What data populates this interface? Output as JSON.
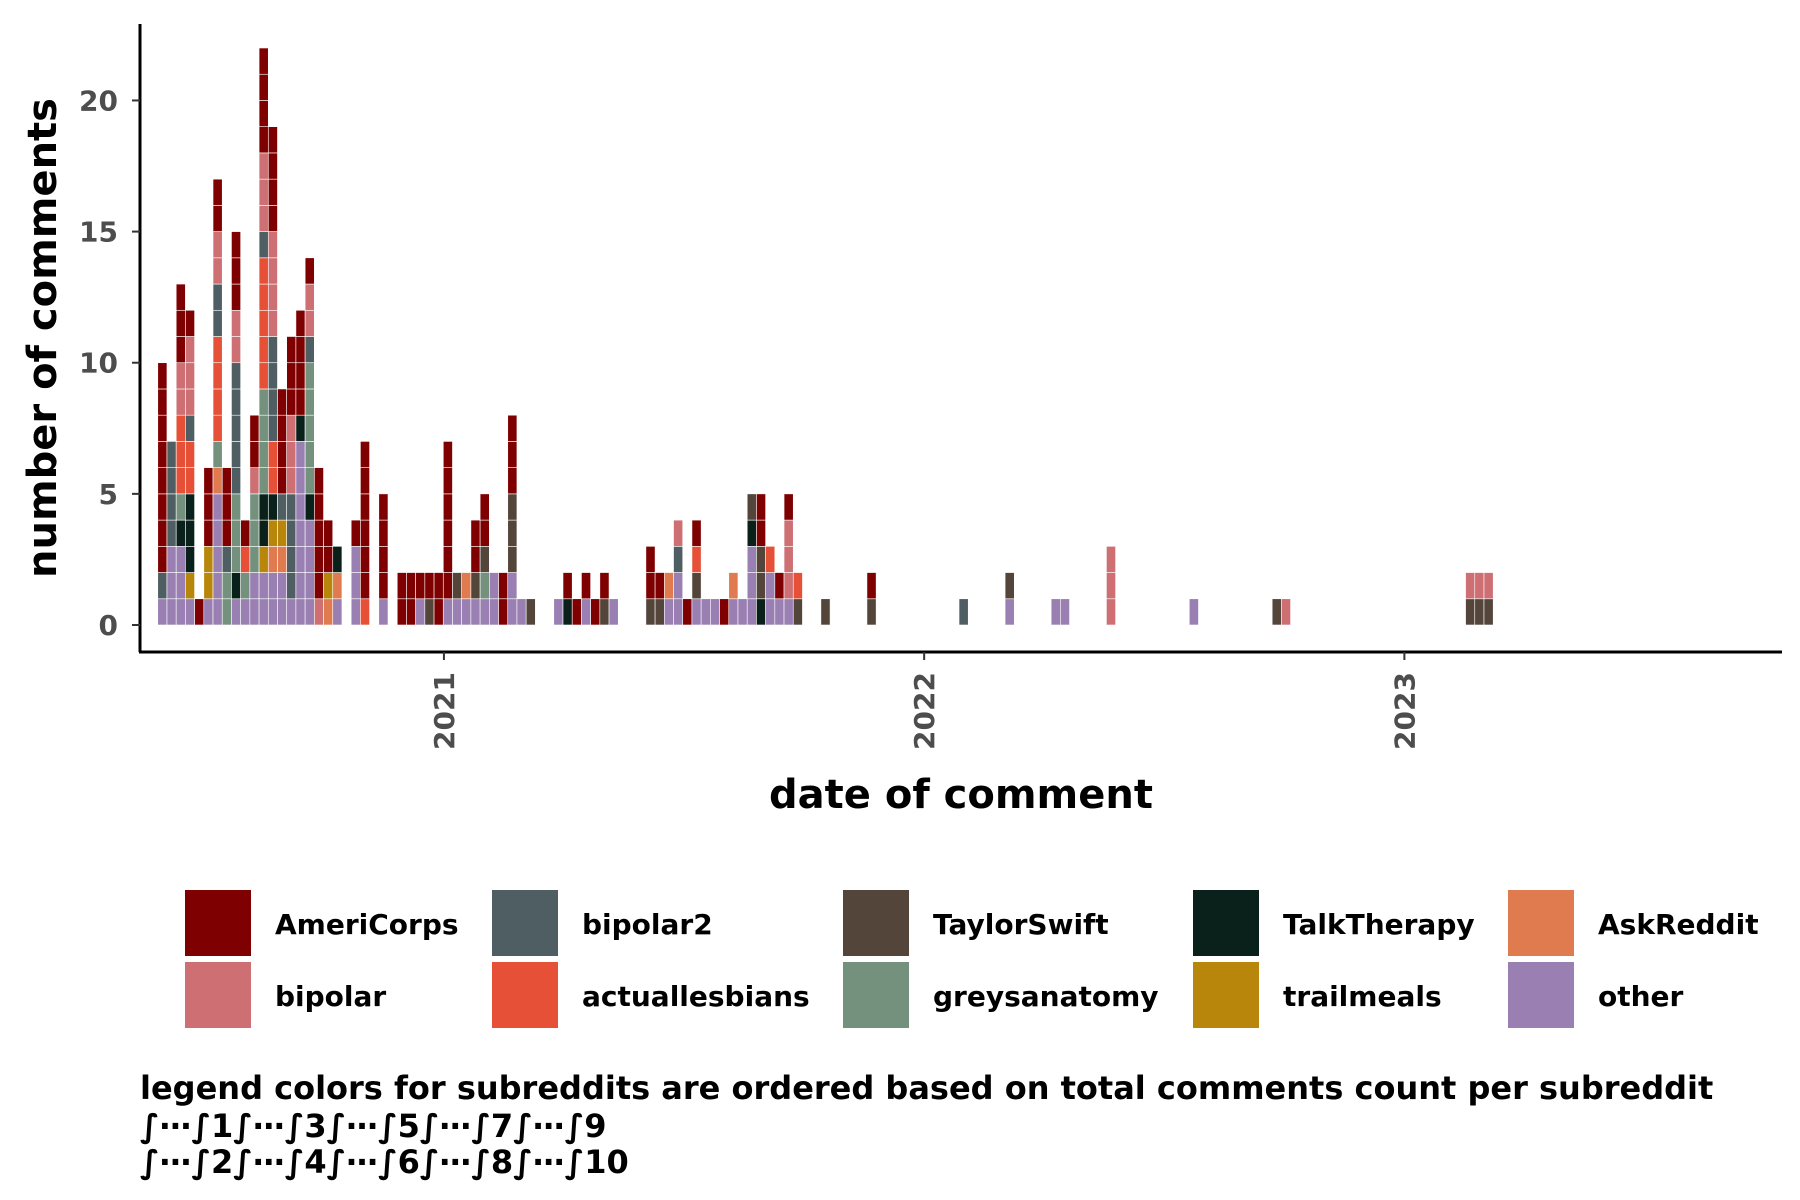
{
  "chart_data": {
    "type": "bar",
    "stacked": true,
    "binning": "weekly",
    "xlabel": "date of comment",
    "ylabel": "number of comments",
    "ylim": [
      0,
      22
    ],
    "yticks": [
      0,
      5,
      10,
      15,
      20
    ],
    "xticks": [
      "2021-01-01",
      "2022-01-01",
      "2023-01-01"
    ],
    "xtick_labels": [
      "2021",
      "2022",
      "2023"
    ],
    "xlim": [
      "2020-05-15",
      "2023-10-15"
    ],
    "grid": false,
    "legend_position": "bottom",
    "legend": [
      {
        "key": "AmeriCorps",
        "label": "AmeriCorps",
        "color": "#7f0000"
      },
      {
        "key": "bipolar",
        "label": "bipolar",
        "color": "#cd6f73"
      },
      {
        "key": "bipolar2",
        "label": "bipolar2",
        "color": "#4f5e62"
      },
      {
        "key": "actuallesbians",
        "label": "actuallesbians",
        "color": "#e55036"
      },
      {
        "key": "TaylorSwift",
        "label": "TaylorSwift",
        "color": "#53453a"
      },
      {
        "key": "greysanatomy",
        "label": "greysanatomy",
        "color": "#74917d"
      },
      {
        "key": "TalkTherapy",
        "label": "TalkTherapy",
        "color": "#0a211b"
      },
      {
        "key": "trailmeals",
        "label": "trailmeals",
        "color": "#b8860b"
      },
      {
        "key": "AskReddit",
        "label": "AskReddit",
        "color": "#e07b4f"
      },
      {
        "key": "other",
        "label": "other",
        "color": "#9a7fb3"
      }
    ],
    "stack_order": [
      "other",
      "AskReddit",
      "trailmeals",
      "TalkTherapy",
      "greysanatomy",
      "TaylorSwift",
      "actuallesbians",
      "bipolar2",
      "bipolar",
      "AmeriCorps"
    ],
    "bins": [
      {
        "date": "2020-06-01",
        "counts": {
          "other": 1,
          "bipolar2": 1,
          "AmeriCorps": 8
        }
      },
      {
        "date": "2020-06-08",
        "counts": {
          "other": 3,
          "bipolar2": 4
        }
      },
      {
        "date": "2020-06-15",
        "counts": {
          "other": 3,
          "TalkTherapy": 1,
          "greysanatomy": 1,
          "actuallesbians": 3,
          "bipolar": 2,
          "AmeriCorps": 3
        }
      },
      {
        "date": "2020-06-22",
        "counts": {
          "other": 1,
          "trailmeals": 1,
          "TalkTherapy": 3,
          "actuallesbians": 2,
          "bipolar2": 1,
          "bipolar": 3,
          "AmeriCorps": 1
        }
      },
      {
        "date": "2020-06-29",
        "counts": {
          "AmeriCorps": 1
        }
      },
      {
        "date": "2020-07-06",
        "counts": {
          "other": 1,
          "trailmeals": 2,
          "AmeriCorps": 3
        }
      },
      {
        "date": "2020-07-13",
        "counts": {
          "other": 5,
          "AskReddit": 1,
          "greysanatomy": 1,
          "actuallesbians": 4,
          "bipolar2": 2,
          "bipolar": 2,
          "AmeriCorps": 2
        }
      },
      {
        "date": "2020-07-20",
        "counts": {
          "greysanatomy": 2,
          "bipolar2": 1,
          "AmeriCorps": 3
        }
      },
      {
        "date": "2020-07-27",
        "counts": {
          "other": 1,
          "TalkTherapy": 1,
          "greysanatomy": 3,
          "bipolar2": 5,
          "bipolar": 2,
          "AmeriCorps": 3
        }
      },
      {
        "date": "2020-08-03",
        "counts": {
          "other": 1,
          "greysanatomy": 1,
          "actuallesbians": 1,
          "AmeriCorps": 1
        }
      },
      {
        "date": "2020-08-10",
        "counts": {
          "other": 2,
          "greysanatomy": 3,
          "bipolar": 1,
          "AmeriCorps": 2
        }
      },
      {
        "date": "2020-08-17",
        "counts": {
          "other": 2,
          "trailmeals": 1,
          "TalkTherapy": 2,
          "greysanatomy": 4,
          "actuallesbians": 5,
          "bipolar2": 1,
          "bipolar": 3,
          "AmeriCorps": 4
        }
      },
      {
        "date": "2020-08-24",
        "counts": {
          "other": 2,
          "AskReddit": 1,
          "trailmeals": 1,
          "TalkTherapy": 1,
          "actuallesbians": 2,
          "bipolar2": 4,
          "bipolar": 4,
          "AmeriCorps": 4
        }
      },
      {
        "date": "2020-08-31",
        "counts": {
          "other": 2,
          "trailmeals": 1,
          "AskReddit": 1,
          "bipolar2": 1,
          "AmeriCorps": 4
        }
      },
      {
        "date": "2020-09-07",
        "counts": {
          "other": 1,
          "bipolar2": 4,
          "bipolar": 3,
          "AmeriCorps": 3
        }
      },
      {
        "date": "2020-09-14",
        "counts": {
          "other": 7,
          "TalkTherapy": 1,
          "AmeriCorps": 4
        }
      },
      {
        "date": "2020-09-21",
        "counts": {
          "other": 4,
          "TalkTherapy": 1,
          "greysanatomy": 5,
          "bipolar2": 1,
          "bipolar": 2,
          "AmeriCorps": 1
        }
      },
      {
        "date": "2020-09-28",
        "counts": {
          "bipolar": 1,
          "AmeriCorps": 5
        }
      },
      {
        "date": "2020-10-05",
        "counts": {
          "AskReddit": 1,
          "trailmeals": 1,
          "AmeriCorps": 2
        }
      },
      {
        "date": "2020-10-12",
        "counts": {
          "other": 1,
          "AskReddit": 1,
          "TalkTherapy": 1
        }
      },
      {
        "date": "2020-10-26",
        "counts": {
          "other": 3,
          "AmeriCorps": 1
        }
      },
      {
        "date": "2020-11-02",
        "counts": {
          "actuallesbians": 1,
          "AmeriCorps": 6
        }
      },
      {
        "date": "2020-11-16",
        "counts": {
          "other": 1,
          "AmeriCorps": 4
        }
      },
      {
        "date": "2020-11-30",
        "counts": {
          "AmeriCorps": 2
        }
      },
      {
        "date": "2020-12-07",
        "counts": {
          "AmeriCorps": 2
        }
      },
      {
        "date": "2020-12-14",
        "counts": {
          "other": 1,
          "AmeriCorps": 1
        }
      },
      {
        "date": "2020-12-21",
        "counts": {
          "TaylorSwift": 1,
          "AmeriCorps": 1
        }
      },
      {
        "date": "2020-12-28",
        "counts": {
          "AmeriCorps": 2
        }
      },
      {
        "date": "2021-01-04",
        "counts": {
          "other": 1,
          "AmeriCorps": 6
        }
      },
      {
        "date": "2021-01-11",
        "counts": {
          "other": 1,
          "TaylorSwift": 1
        }
      },
      {
        "date": "2021-01-18",
        "counts": {
          "other": 1,
          "AskReddit": 1
        }
      },
      {
        "date": "2021-01-25",
        "counts": {
          "other": 1,
          "TaylorSwift": 1,
          "AmeriCorps": 2
        }
      },
      {
        "date": "2021-02-01",
        "counts": {
          "other": 1,
          "greysanatomy": 1,
          "TaylorSwift": 1,
          "AmeriCorps": 2
        }
      },
      {
        "date": "2021-02-08",
        "counts": {
          "other": 2
        }
      },
      {
        "date": "2021-02-15",
        "counts": {
          "AmeriCorps": 2
        }
      },
      {
        "date": "2021-02-22",
        "counts": {
          "other": 2,
          "TaylorSwift": 3,
          "AmeriCorps": 3
        }
      },
      {
        "date": "2021-03-01",
        "counts": {
          "other": 1
        }
      },
      {
        "date": "2021-03-08",
        "counts": {
          "TaylorSwift": 1
        }
      },
      {
        "date": "2021-03-29",
        "counts": {
          "other": 1
        }
      },
      {
        "date": "2021-04-05",
        "counts": {
          "TalkTherapy": 1,
          "AmeriCorps": 1
        }
      },
      {
        "date": "2021-04-12",
        "counts": {
          "AmeriCorps": 1
        }
      },
      {
        "date": "2021-04-19",
        "counts": {
          "other": 1,
          "AmeriCorps": 1
        }
      },
      {
        "date": "2021-04-26",
        "counts": {
          "AmeriCorps": 1
        }
      },
      {
        "date": "2021-05-03",
        "counts": {
          "TaylorSwift": 1,
          "AmeriCorps": 1
        }
      },
      {
        "date": "2021-05-10",
        "counts": {
          "other": 1
        }
      },
      {
        "date": "2021-06-07",
        "counts": {
          "TaylorSwift": 1,
          "AmeriCorps": 2
        }
      },
      {
        "date": "2021-06-14",
        "counts": {
          "TaylorSwift": 1,
          "AmeriCorps": 1
        }
      },
      {
        "date": "2021-06-21",
        "counts": {
          "other": 1,
          "AskReddit": 1
        }
      },
      {
        "date": "2021-06-28",
        "counts": {
          "other": 2,
          "bipolar2": 1,
          "bipolar": 1
        }
      },
      {
        "date": "2021-07-05",
        "counts": {
          "AmeriCorps": 1
        }
      },
      {
        "date": "2021-07-12",
        "counts": {
          "other": 1,
          "TaylorSwift": 1,
          "actuallesbians": 1,
          "AmeriCorps": 1
        }
      },
      {
        "date": "2021-07-19",
        "counts": {
          "other": 1
        }
      },
      {
        "date": "2021-07-26",
        "counts": {
          "other": 1
        }
      },
      {
        "date": "2021-08-02",
        "counts": {
          "AmeriCorps": 1
        }
      },
      {
        "date": "2021-08-09",
        "counts": {
          "other": 1,
          "AskReddit": 1
        }
      },
      {
        "date": "2021-08-16",
        "counts": {
          "other": 1
        }
      },
      {
        "date": "2021-08-23",
        "counts": {
          "other": 3,
          "TalkTherapy": 1,
          "TaylorSwift": 1
        }
      },
      {
        "date": "2021-08-30",
        "counts": {
          "TalkTherapy": 1,
          "TaylorSwift": 2,
          "AmeriCorps": 2
        }
      },
      {
        "date": "2021-09-06",
        "counts": {
          "other": 2,
          "actuallesbians": 1
        }
      },
      {
        "date": "2021-09-13",
        "counts": {
          "other": 1,
          "AmeriCorps": 1
        }
      },
      {
        "date": "2021-09-20",
        "counts": {
          "other": 1,
          "bipolar": 3,
          "AmeriCorps": 1
        }
      },
      {
        "date": "2021-09-27",
        "counts": {
          "actuallesbians": 1,
          "TaylorSwift": 1
        }
      },
      {
        "date": "2021-10-18",
        "counts": {
          "TaylorSwift": 1
        }
      },
      {
        "date": "2021-11-22",
        "counts": {
          "TaylorSwift": 1,
          "AmeriCorps": 1
        }
      },
      {
        "date": "2022-01-31",
        "counts": {
          "bipolar2": 1
        }
      },
      {
        "date": "2022-03-07",
        "counts": {
          "other": 1,
          "TaylorSwift": 1
        }
      },
      {
        "date": "2022-04-11",
        "counts": {
          "other": 1
        }
      },
      {
        "date": "2022-04-18",
        "counts": {
          "other": 1
        }
      },
      {
        "date": "2022-05-23",
        "counts": {
          "bipolar": 3
        }
      },
      {
        "date": "2022-07-25",
        "counts": {
          "other": 1
        }
      },
      {
        "date": "2022-09-26",
        "counts": {
          "TaylorSwift": 1
        }
      },
      {
        "date": "2022-10-03",
        "counts": {
          "bipolar": 1
        }
      },
      {
        "date": "2023-02-20",
        "counts": {
          "TaylorSwift": 1,
          "bipolar": 1
        }
      },
      {
        "date": "2023-02-27",
        "counts": {
          "TaylorSwift": 1,
          "bipolar": 1
        }
      },
      {
        "date": "2023-03-06",
        "counts": {
          "TaylorSwift": 1,
          "bipolar": 1
        }
      }
    ]
  },
  "caption": {
    "line1": "legend colors for subreddits are ordered based on total comments count per subreddit",
    "line2": "∫⋯∫1∫⋯∫3∫⋯∫5∫⋯∫7∫⋯∫9",
    "line3": "∫⋯∫2∫⋯∫4∫⋯∫6∫⋯∫8∫⋯∫10"
  }
}
